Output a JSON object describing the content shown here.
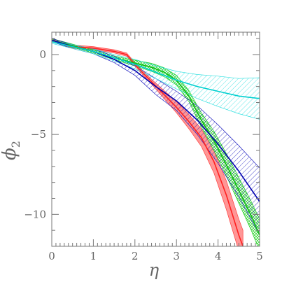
{
  "chart_data": {
    "type": "line",
    "xlabel": "η",
    "ylabel": "ϕ",
    "ylabel_subscript": "2",
    "xlim": [
      0,
      5
    ],
    "ylim": [
      -12,
      1.4
    ],
    "grid": false,
    "x_ticks": [
      0,
      1,
      2,
      3,
      4,
      5
    ],
    "x_tick_labels": [
      "0",
      "1",
      "2",
      "3",
      "4",
      "5"
    ],
    "y_ticks": [
      0,
      -5,
      -10
    ],
    "y_tick_labels": [
      "0",
      "−5",
      "−10"
    ],
    "series": [
      {
        "color": "#ff2020",
        "band_color": "#ff4040",
        "band_style": "solid",
        "x": [
          0,
          0.5,
          1.0,
          1.5,
          1.8,
          2.1,
          2.4,
          2.7,
          3.0,
          3.3,
          3.6,
          3.9,
          4.2,
          4.5,
          4.6
        ],
        "y": [
          0.9,
          0.5,
          0.4,
          0.2,
          0.0,
          -0.9,
          -1.7,
          -2.5,
          -3.3,
          -4.2,
          -5.2,
          -6.7,
          -8.8,
          -11.3,
          -12.0
        ],
        "band_width": [
          0.1,
          0.1,
          0.1,
          0.1,
          0.1,
          0.12,
          0.15,
          0.25,
          0.35,
          0.45,
          0.55,
          0.7,
          0.9,
          1.0,
          1.0
        ]
      },
      {
        "color": "#10c010",
        "band_color": "#20d020",
        "band_style": "crosshatch",
        "x": [
          0,
          0.5,
          1.0,
          1.5,
          1.8,
          2.1,
          2.4,
          2.7,
          3.0,
          3.3,
          3.6,
          3.9,
          4.2,
          4.5,
          4.8,
          5.0
        ],
        "y": [
          0.9,
          0.55,
          0.2,
          -0.2,
          -0.4,
          -0.6,
          -0.8,
          -1.1,
          -1.6,
          -2.6,
          -4.1,
          -5.4,
          -6.9,
          -8.5,
          -10.1,
          -11.3
        ],
        "band_width": [
          0.1,
          0.1,
          0.1,
          0.12,
          0.15,
          0.2,
          0.25,
          0.28,
          0.3,
          0.35,
          0.45,
          0.6,
          0.7,
          0.8,
          0.9,
          1.0
        ]
      },
      {
        "color": "#0000b0",
        "band_color": "#2020c0",
        "band_style": "diagonal",
        "x": [
          0,
          0.5,
          1.0,
          1.5,
          2.0,
          2.5,
          3.0,
          3.5,
          4.0,
          4.5,
          5.0
        ],
        "y": [
          0.9,
          0.5,
          0.2,
          -0.3,
          -1.0,
          -2.0,
          -2.9,
          -4.1,
          -5.6,
          -7.3,
          -9.2
        ],
        "band_width": [
          0.1,
          0.12,
          0.15,
          0.2,
          0.3,
          0.5,
          0.6,
          0.9,
          1.2,
          1.6,
          2.1
        ]
      },
      {
        "color": "#00d0d0",
        "band_color": "#30e0e0",
        "band_style": "diagonal",
        "x": [
          0,
          0.5,
          1.0,
          1.5,
          2.0,
          2.5,
          3.0,
          3.5,
          4.0,
          4.5,
          5.0
        ],
        "y": [
          0.8,
          0.5,
          0.2,
          -0.2,
          -0.6,
          -1.1,
          -1.6,
          -2.0,
          -2.3,
          -2.6,
          -2.75
        ],
        "band_width": [
          0.1,
          0.12,
          0.15,
          0.2,
          0.3,
          0.4,
          0.55,
          0.75,
          0.95,
          1.1,
          1.3
        ]
      }
    ]
  }
}
